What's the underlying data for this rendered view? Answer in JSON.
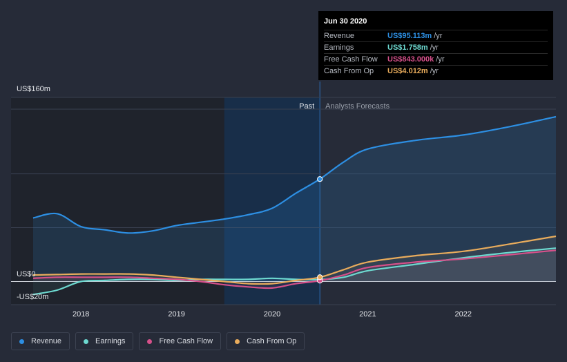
{
  "tooltip": {
    "date": "Jun 30 2020",
    "rows": [
      {
        "label": "Revenue",
        "value": "US$95.113m",
        "unit": "/yr",
        "color": "#2d8fe3"
      },
      {
        "label": "Earnings",
        "value": "US$1.758m",
        "unit": "/yr",
        "color": "#6dd9d0"
      },
      {
        "label": "Free Cash Flow",
        "value": "US$843.000k",
        "unit": "/yr",
        "color": "#d6508a"
      },
      {
        "label": "Cash From Op",
        "value": "US$4.012m",
        "unit": "/yr",
        "color": "#e9ac5c"
      }
    ]
  },
  "legend": [
    {
      "label": "Revenue",
      "color": "#2d8fe3"
    },
    {
      "label": "Earnings",
      "color": "#6dd9d0"
    },
    {
      "label": "Free Cash Flow",
      "color": "#d6508a"
    },
    {
      "label": "Cash From Op",
      "color": "#e9ac5c"
    }
  ],
  "chart_data": {
    "type": "line",
    "title": "",
    "y_tick_labels": [
      "US$160m",
      "US$0",
      "-US$20m"
    ],
    "ylim": [
      -20,
      160
    ],
    "xlim": [
      2017.5,
      2022.97
    ],
    "x_tick_labels": [
      "2018",
      "2019",
      "2020",
      "2021",
      "2022"
    ],
    "x_ticks": [
      2018,
      2019,
      2020,
      2021,
      2022
    ],
    "past_label": "Past",
    "forecast_label": "Analysts Forecasts",
    "divider_x": 2020.5,
    "highlight_from_x": 2019.5,
    "series": [
      {
        "name": "Revenue",
        "color": "#2d8fe3",
        "x": [
          2017.5,
          2017.75,
          2018.0,
          2018.25,
          2018.5,
          2018.75,
          2019.0,
          2019.25,
          2019.5,
          2019.75,
          2020.0,
          2020.25,
          2020.5,
          2020.75,
          2021.0,
          2021.5,
          2022.0,
          2022.5,
          2022.97
        ],
        "y": [
          59,
          63,
          51,
          48,
          45,
          47,
          52,
          55,
          58,
          62,
          68,
          82,
          95.1,
          111,
          123,
          131,
          136,
          144,
          153
        ]
      },
      {
        "name": "Earnings",
        "color": "#6dd9d0",
        "x": [
          2017.5,
          2017.75,
          2018.0,
          2018.25,
          2018.5,
          2018.75,
          2019.0,
          2019.25,
          2019.5,
          2019.75,
          2020.0,
          2020.25,
          2020.5,
          2020.75,
          2021.0,
          2021.5,
          2022.0,
          2022.5,
          2022.97
        ],
        "y": [
          -12,
          -8,
          0,
          1,
          2,
          2,
          1,
          2,
          2,
          2,
          3,
          2,
          1.8,
          4,
          10,
          16,
          22,
          27,
          31
        ]
      },
      {
        "name": "Free Cash Flow",
        "color": "#d6508a",
        "x": [
          2017.5,
          2017.75,
          2018.0,
          2018.25,
          2018.5,
          2018.75,
          2019.0,
          2019.25,
          2019.5,
          2019.75,
          2020.0,
          2020.25,
          2020.5,
          2020.75,
          2021.0,
          2021.5,
          2022.0,
          2022.5,
          2022.97
        ],
        "y": [
          3,
          4,
          4,
          4,
          4,
          3,
          2,
          0,
          -3,
          -5,
          -6,
          -2,
          0.8,
          6,
          13,
          18,
          21,
          25,
          29
        ]
      },
      {
        "name": "Cash From Op",
        "color": "#e9ac5c",
        "x": [
          2017.5,
          2017.75,
          2018.0,
          2018.25,
          2018.5,
          2018.75,
          2019.0,
          2019.25,
          2019.5,
          2019.75,
          2020.0,
          2020.25,
          2020.5,
          2020.75,
          2021.0,
          2021.5,
          2022.0,
          2022.5,
          2022.97
        ],
        "y": [
          6,
          6.5,
          7,
          7,
          7,
          6,
          4,
          2,
          0,
          -2,
          -2,
          1,
          4,
          11,
          18,
          24,
          28,
          35,
          42
        ]
      }
    ]
  }
}
